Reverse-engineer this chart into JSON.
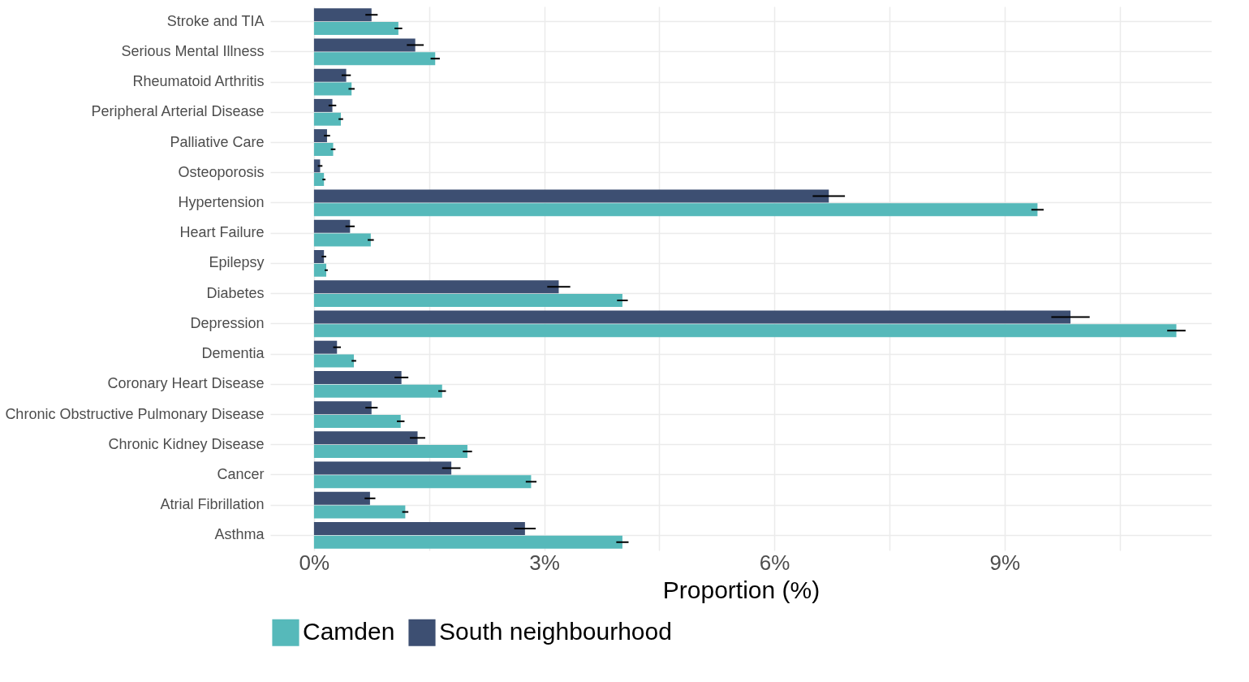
{
  "chart_data": {
    "type": "bar",
    "orientation": "horizontal",
    "xlabel": "Proportion (%)",
    "categories": [
      "Stroke and TIA",
      "Serious Mental Illness",
      "Rheumatoid Arthritis",
      "Peripheral Arterial Disease",
      "Palliative Care",
      "Osteoporosis",
      "Hypertension",
      "Heart Failure",
      "Epilepsy",
      "Diabetes",
      "Depression",
      "Dementia",
      "Coronary Heart Disease",
      "Chronic Obstructive Pulmonary Disease",
      "Chronic Kidney Disease",
      "Cancer",
      "Atrial Fibrillation",
      "Asthma"
    ],
    "series": [
      {
        "name": "Camden",
        "color": "#56b9ba",
        "values": [
          1.1,
          1.58,
          0.49,
          0.35,
          0.25,
          0.13,
          9.43,
          0.74,
          0.16,
          4.02,
          11.24,
          0.52,
          1.67,
          1.13,
          2.0,
          2.83,
          1.19,
          4.02
        ],
        "errors": [
          0.05,
          0.06,
          0.04,
          0.03,
          0.03,
          0.02,
          0.08,
          0.04,
          0.02,
          0.07,
          0.12,
          0.03,
          0.05,
          0.05,
          0.06,
          0.07,
          0.04,
          0.08
        ]
      },
      {
        "name": "South neighbourhood",
        "color": "#3d4f72",
        "values": [
          0.75,
          1.32,
          0.42,
          0.24,
          0.17,
          0.08,
          6.71,
          0.47,
          0.13,
          3.19,
          9.86,
          0.3,
          1.14,
          0.75,
          1.35,
          1.79,
          0.73,
          2.75
        ],
        "errors": [
          0.08,
          0.11,
          0.06,
          0.05,
          0.04,
          0.03,
          0.21,
          0.06,
          0.03,
          0.15,
          0.25,
          0.05,
          0.09,
          0.08,
          0.1,
          0.12,
          0.07,
          0.14
        ]
      }
    ],
    "xlim": [
      -0.57,
      11.7
    ],
    "xticks": [
      {
        "value": 0,
        "label": "0%"
      },
      {
        "value": 1.5,
        "label": null
      },
      {
        "value": 3,
        "label": "3%"
      },
      {
        "value": 4.5,
        "label": null
      },
      {
        "value": 6,
        "label": "6%"
      },
      {
        "value": 7.5,
        "label": null
      },
      {
        "value": 9,
        "label": "9%"
      },
      {
        "value": 10.5,
        "label": null
      }
    ],
    "grid": true,
    "legend": "bottom"
  }
}
